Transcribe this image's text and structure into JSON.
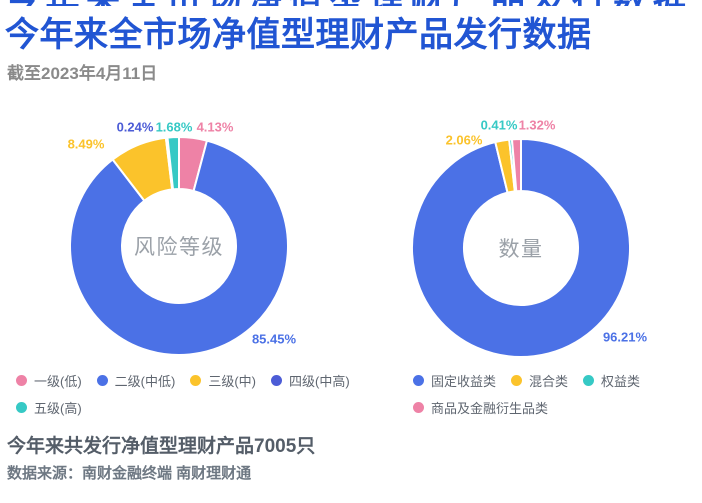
{
  "header": {
    "title": "今年来全市场净值型理财产品发行数据",
    "subtitle": "截至2023年4月11日"
  },
  "colors": {
    "title_blue": "#2155d3",
    "series_blue": "#4b71e6",
    "series_indigo": "#4c5cd6",
    "series_pink": "#ee82a6",
    "series_yellow": "#fbc32b",
    "series_teal": "#36c9c5",
    "legend_text": "#5f6670",
    "center_label_gray": "#9ba1a8"
  },
  "chart_data": [
    {
      "type": "pie",
      "subtype": "donut",
      "center_label": "风险等级",
      "legend_position": "bottom-left",
      "start_angle_deg": 0,
      "direction": "clockwise",
      "categories": [
        "一级(低)",
        "二级(中低)",
        "三级(中)",
        "四级(中高)",
        "五级(高)"
      ],
      "values": [
        4.13,
        85.45,
        8.49,
        0.24,
        1.68
      ],
      "value_labels": [
        "4.13%",
        "85.45%",
        "8.49%",
        "0.24%",
        "1.68%"
      ],
      "colors": [
        "#ee82a6",
        "#4b71e6",
        "#fbc32b",
        "#4c5cd6",
        "#36c9c5"
      ]
    },
    {
      "type": "pie",
      "subtype": "donut",
      "center_label": "数量",
      "legend_position": "bottom-left",
      "start_angle_deg": 0,
      "direction": "clockwise",
      "categories": [
        "固定收益类",
        "混合类",
        "权益类",
        "商品及金融衍生品类"
      ],
      "values": [
        96.21,
        2.06,
        0.41,
        1.32
      ],
      "value_labels": [
        "96.21%",
        "2.06%",
        "0.41%",
        "1.32%"
      ],
      "colors": [
        "#4b71e6",
        "#fbc32b",
        "#36c9c5",
        "#ee82a6"
      ]
    }
  ],
  "footer": {
    "summary": "今年来共发行净值型理财产品7005只",
    "source": "数据来源：南财金融终端 南财理财通"
  }
}
